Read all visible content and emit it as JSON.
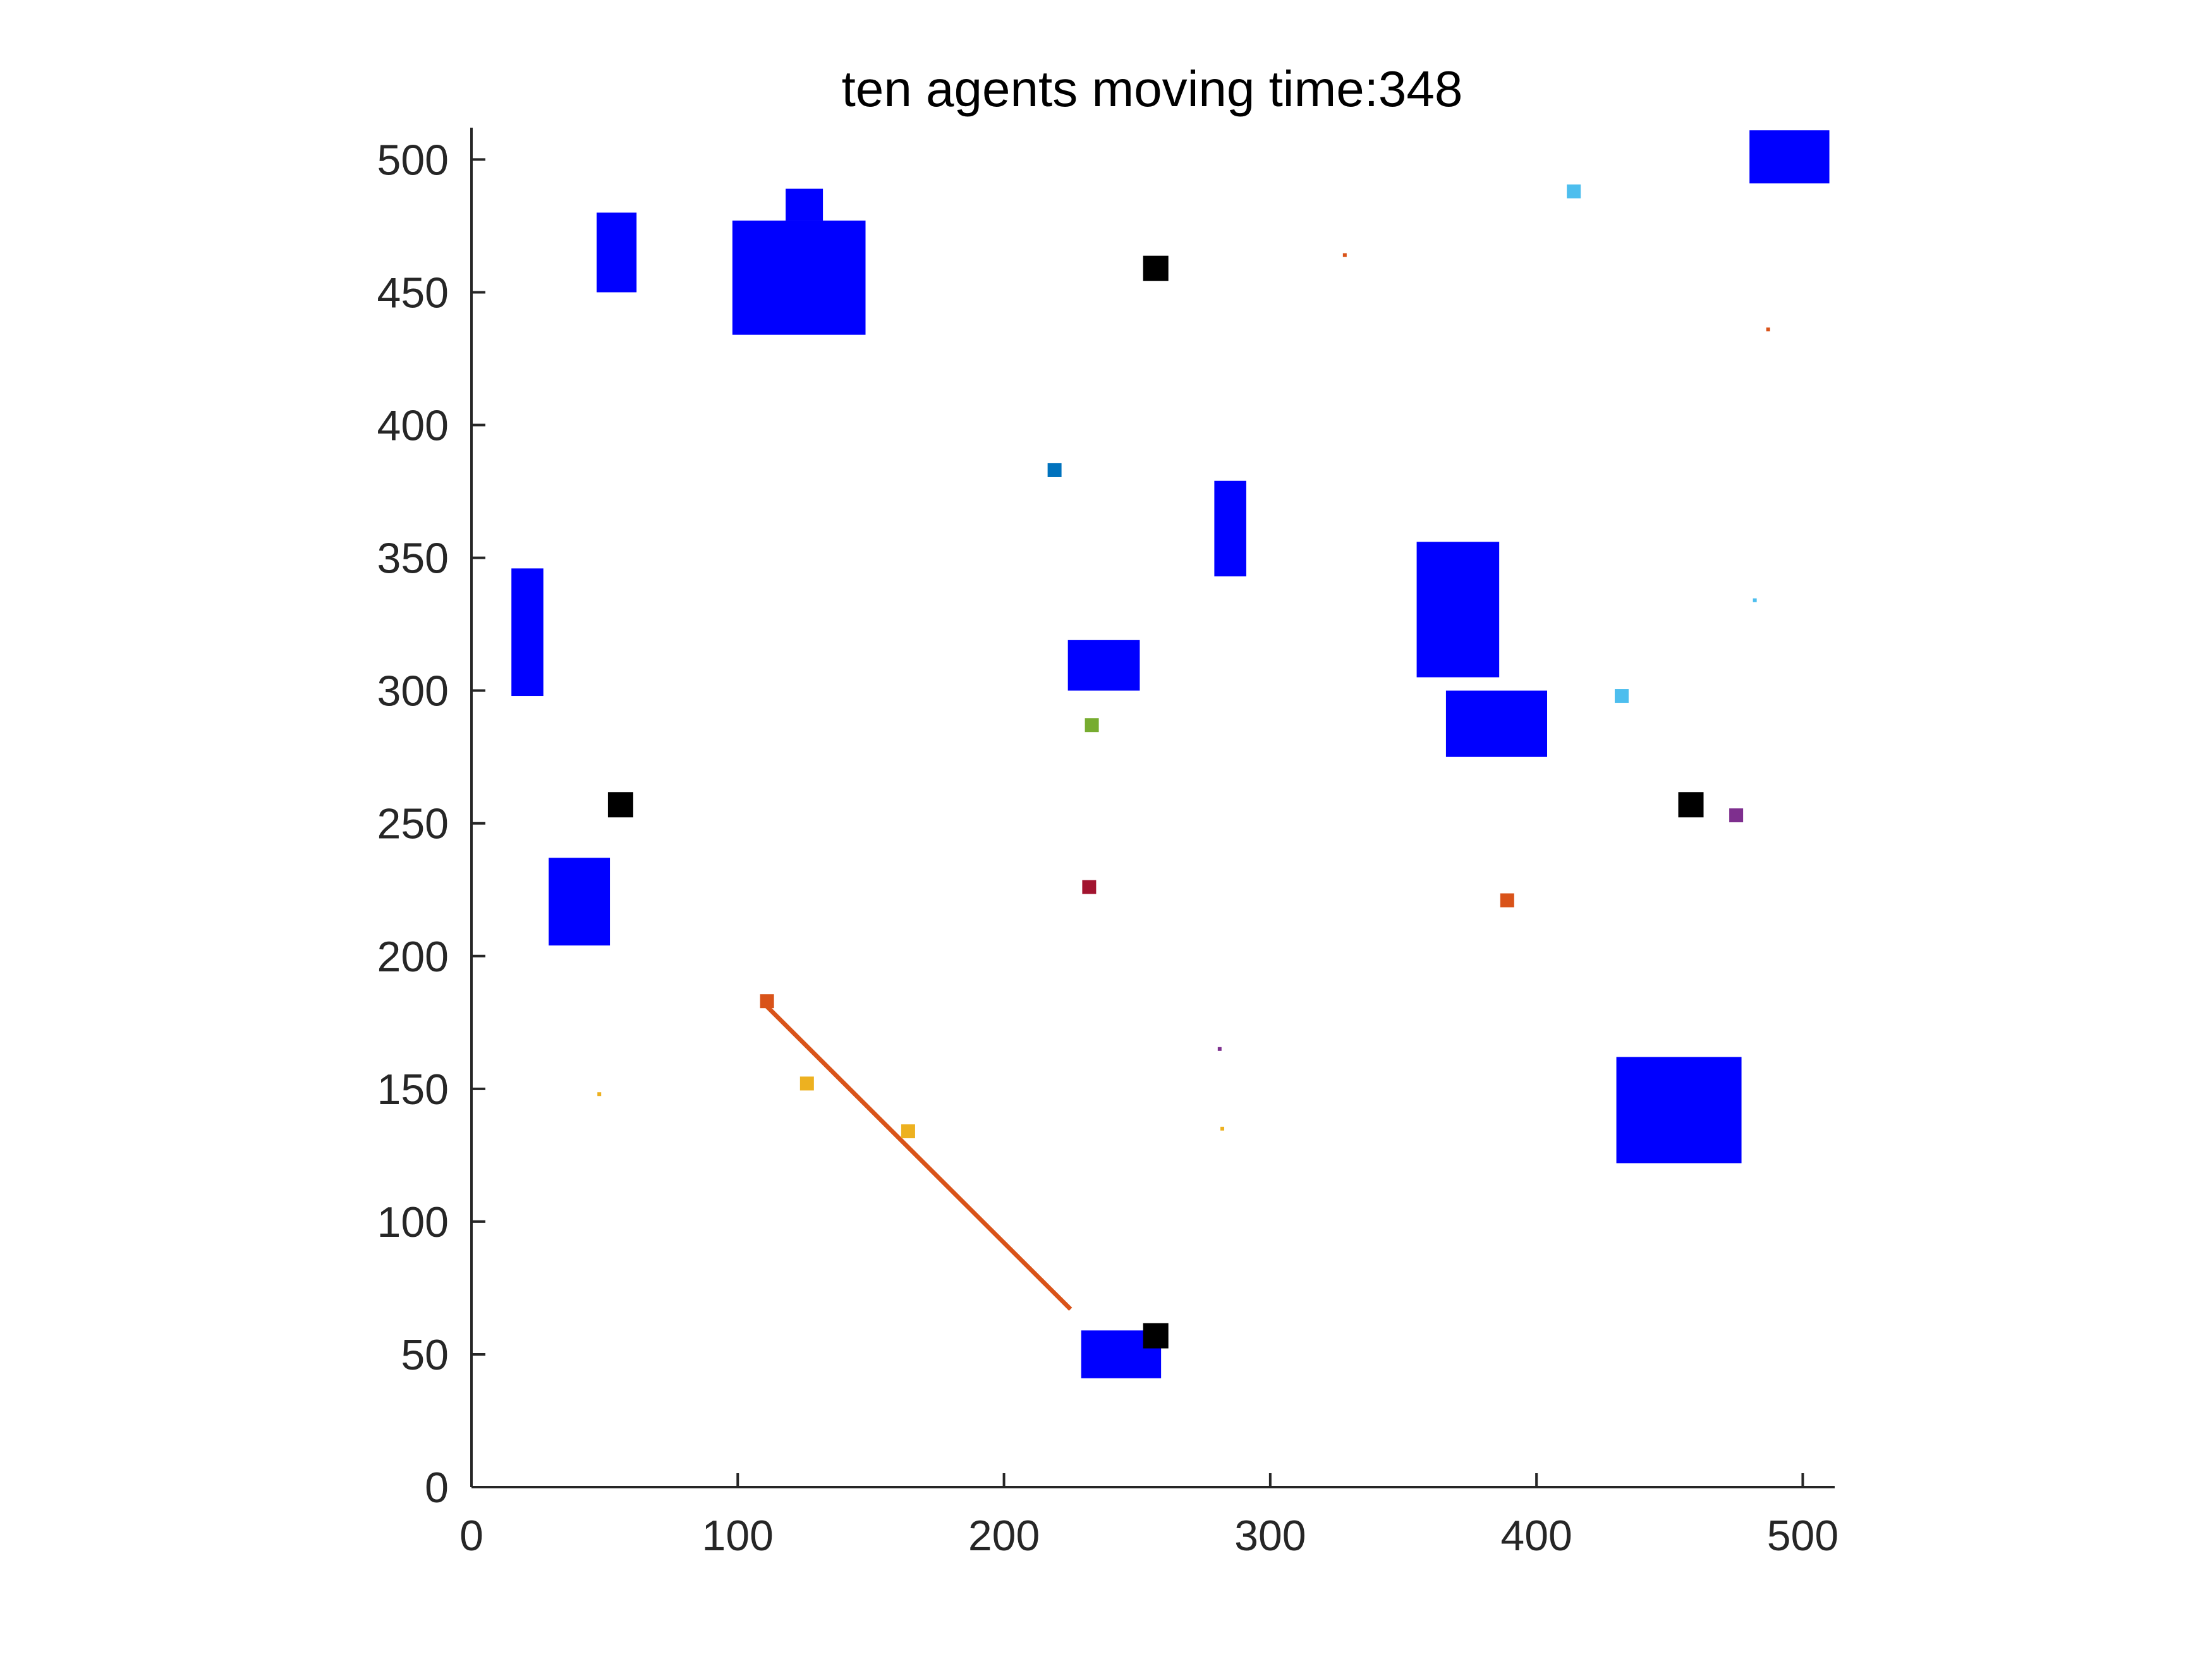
{
  "chart_data": {
    "type": "scatter",
    "title": "ten agents moving time:348",
    "xlabel": "",
    "ylabel": "",
    "xlim": [
      0,
      512
    ],
    "ylim": [
      0,
      512
    ],
    "x_ticks": [
      0,
      100,
      200,
      300,
      400,
      500
    ],
    "y_ticks": [
      0,
      50,
      100,
      150,
      200,
      250,
      300,
      350,
      400,
      450,
      500
    ],
    "x_tick_labels": [
      "0",
      "100",
      "200",
      "300",
      "400",
      "500"
    ],
    "y_tick_labels": [
      "0",
      "50",
      "100",
      "150",
      "200",
      "250",
      "300",
      "350",
      "400",
      "450",
      "500"
    ],
    "grid": false,
    "obstacle_color": "#0000ff",
    "obstacles": [
      {
        "x": [
          47,
          62
        ],
        "y": [
          450,
          480
        ]
      },
      {
        "x": [
          98,
          148
        ],
        "y": [
          434,
          477
        ]
      },
      {
        "x": [
          118,
          132
        ],
        "y": [
          477,
          489
        ]
      },
      {
        "x": [
          480,
          510
        ],
        "y": [
          491,
          511
        ]
      },
      {
        "x": [
          279,
          291
        ],
        "y": [
          343,
          379
        ]
      },
      {
        "x": [
          355,
          386
        ],
        "y": [
          305,
          356
        ]
      },
      {
        "x": [
          15,
          27
        ],
        "y": [
          298,
          346
        ]
      },
      {
        "x": [
          224,
          251
        ],
        "y": [
          300,
          319
        ]
      },
      {
        "x": [
          366,
          404
        ],
        "y": [
          275,
          300
        ]
      },
      {
        "x": [
          29,
          52
        ],
        "y": [
          204,
          237
        ]
      },
      {
        "x": [
          430,
          477
        ],
        "y": [
          122,
          162
        ]
      },
      {
        "x": [
          229,
          259
        ],
        "y": [
          41,
          59
        ]
      }
    ],
    "station_color": "#000000",
    "stations": [
      {
        "x": 257,
        "y": 459
      },
      {
        "x": 56,
        "y": 257
      },
      {
        "x": 458,
        "y": 257
      },
      {
        "x": 257,
        "y": 57
      }
    ],
    "agents": [
      {
        "x": 414,
        "y": 488,
        "color": "#4dbeee"
      },
      {
        "x": 219,
        "y": 383,
        "color": "#0072bd"
      },
      {
        "x": 432,
        "y": 298,
        "color": "#4dbeee"
      },
      {
        "x": 233,
        "y": 287,
        "color": "#77ac30"
      },
      {
        "x": 475,
        "y": 253,
        "color": "#7e2f8e"
      },
      {
        "x": 232,
        "y": 226,
        "color": "#a2142f"
      },
      {
        "x": 389,
        "y": 221,
        "color": "#d95319"
      },
      {
        "x": 111,
        "y": 183,
        "color": "#d95319"
      },
      {
        "x": 126,
        "y": 152,
        "color": "#edb120"
      },
      {
        "x": 164,
        "y": 134,
        "color": "#edb120"
      }
    ],
    "goals": [
      {
        "x": 328,
        "y": 464,
        "color": "#d95319"
      },
      {
        "x": 487,
        "y": 436,
        "color": "#d95319"
      },
      {
        "x": 482,
        "y": 334,
        "color": "#4dbeee"
      },
      {
        "x": 281,
        "y": 165,
        "color": "#7e2f8e"
      },
      {
        "x": 48,
        "y": 148,
        "color": "#edb120"
      },
      {
        "x": 282,
        "y": 135,
        "color": "#edb120"
      }
    ],
    "paths": [
      {
        "x": [
          111,
          225
        ],
        "y": [
          181,
          67
        ],
        "color": "#d95319"
      }
    ]
  }
}
